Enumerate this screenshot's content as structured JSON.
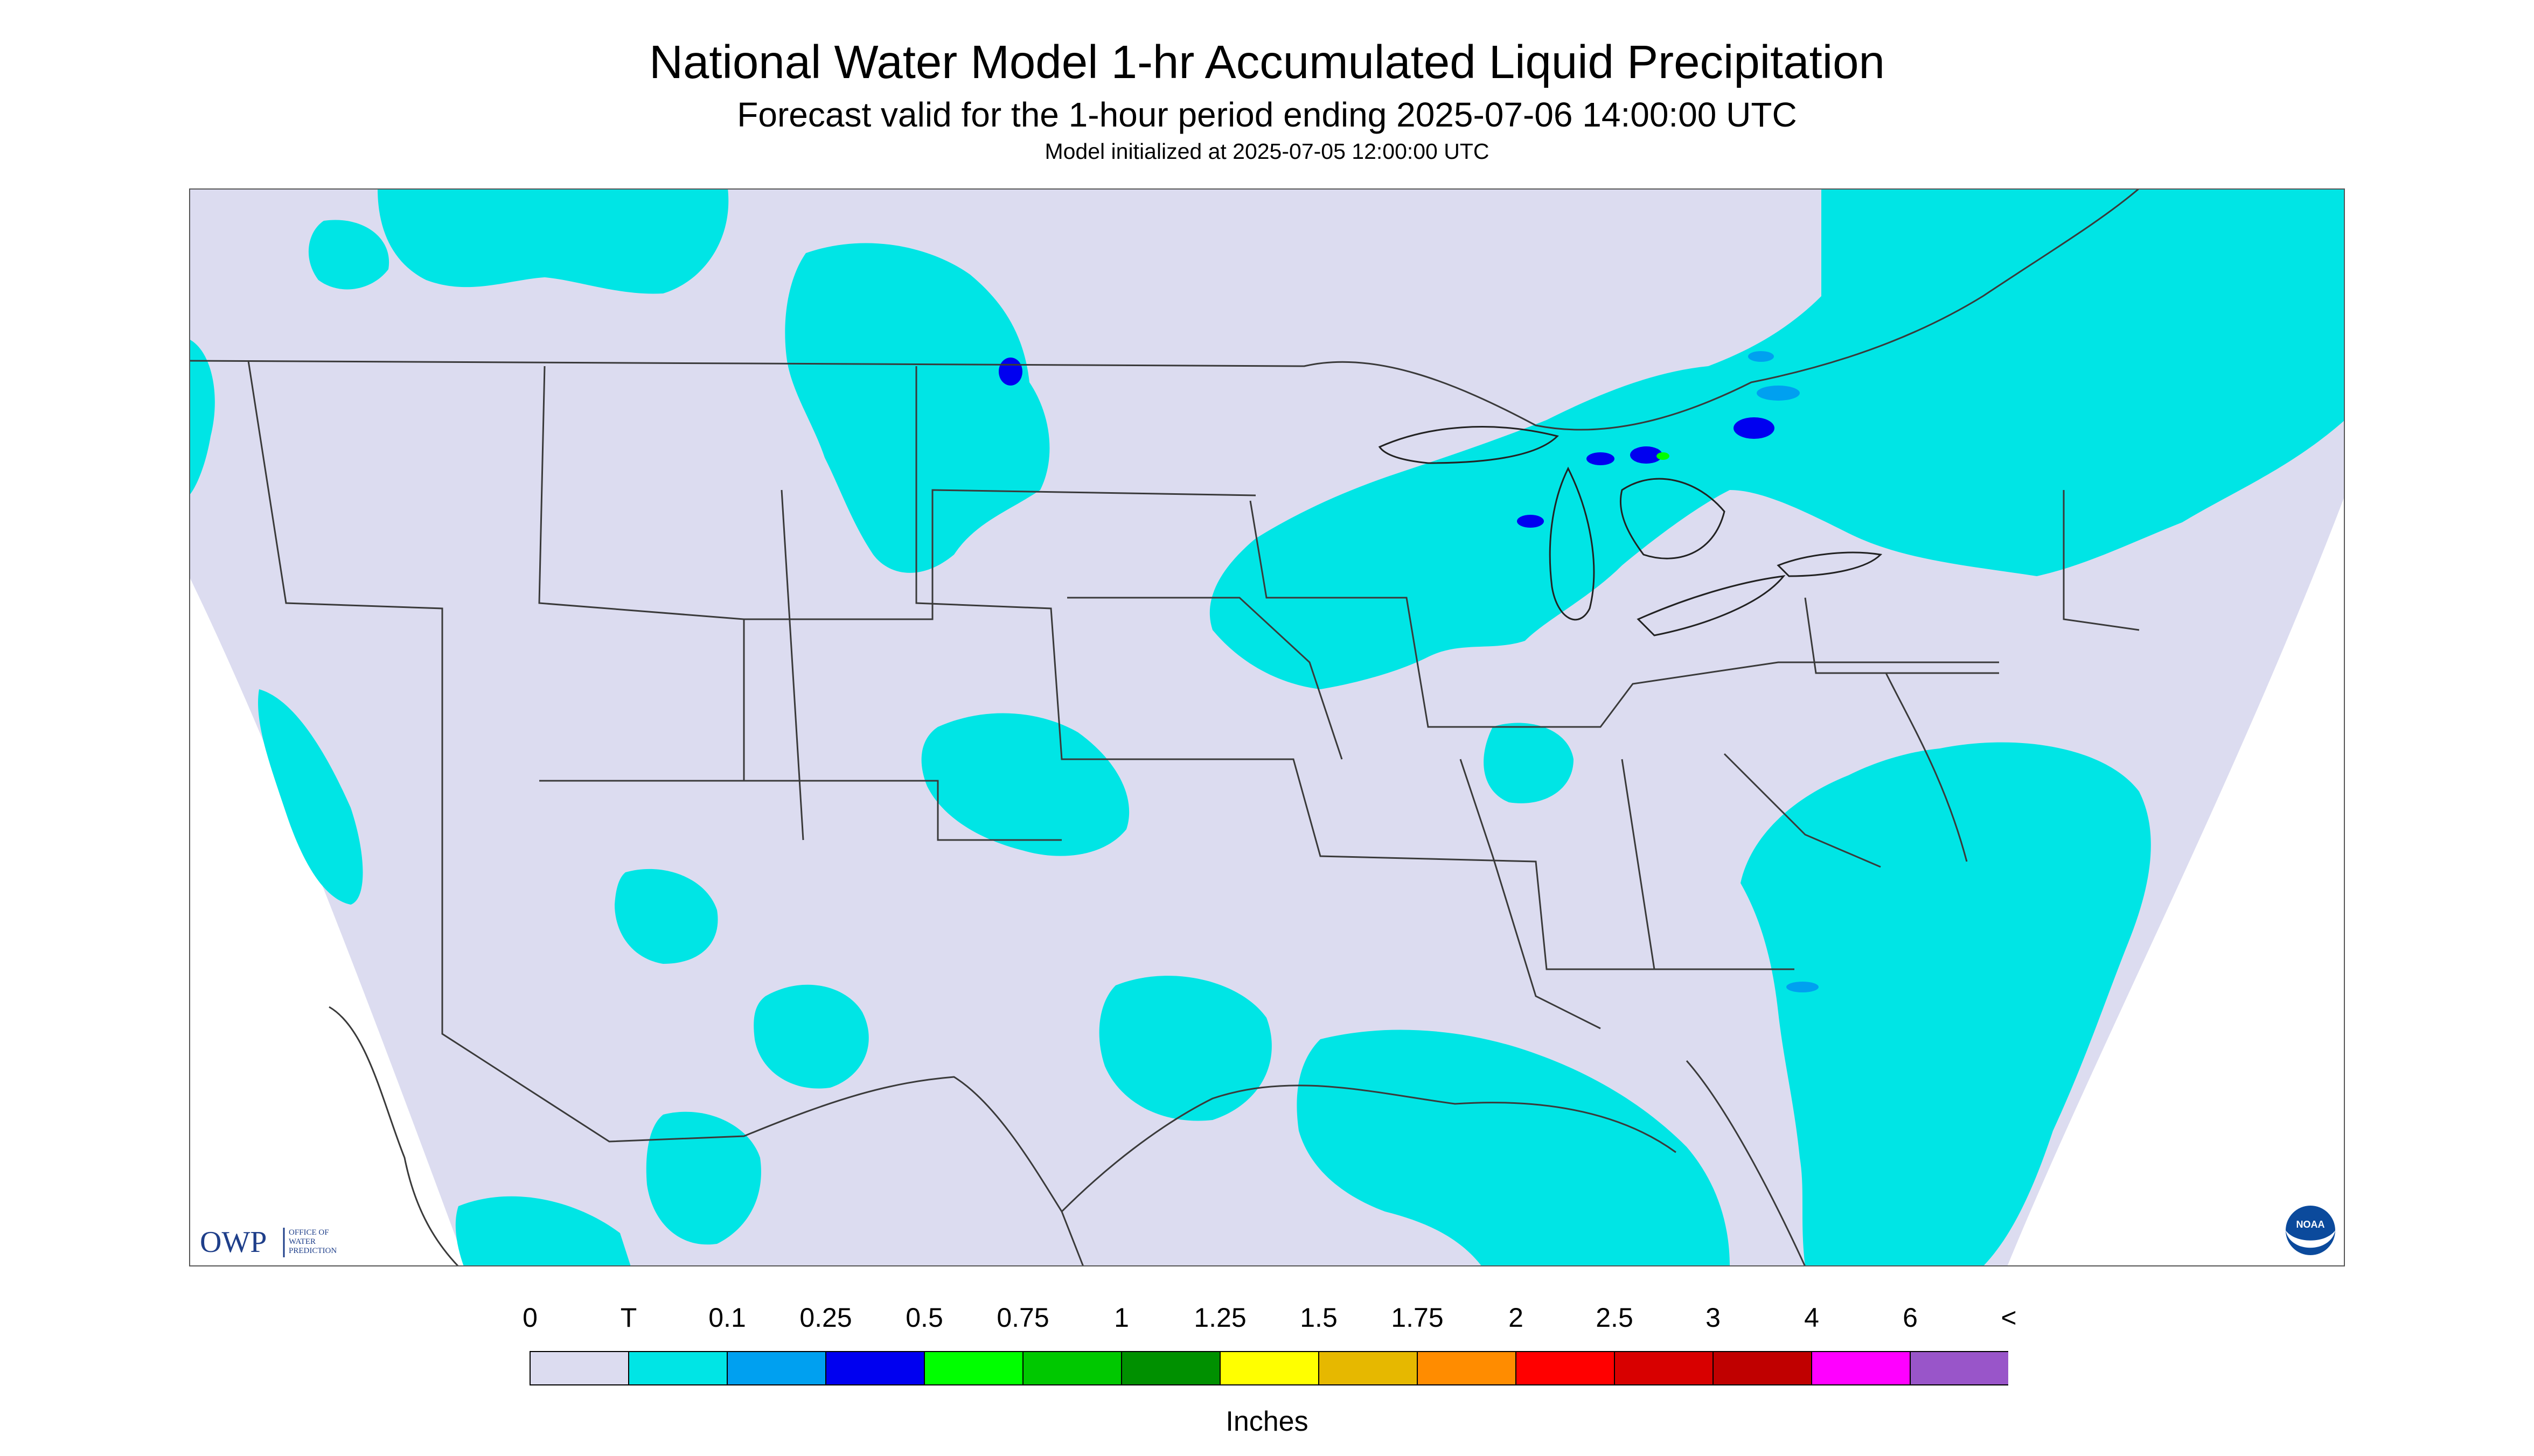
{
  "title": "National Water Model 1-hr Accumulated Liquid Precipitation",
  "subtitle": "Forecast valid for the 1-hour period ending 2025-07-06 14:00:00 UTC",
  "init_line": "Model initialized at 2025-07-05 12:00:00 UTC",
  "logos": {
    "owp_letters": "OWP",
    "owp_text": [
      "OFFICE OF",
      "WATER",
      "PREDICTION"
    ],
    "noaa_text": "NOAA"
  },
  "legend": {
    "units": "Inches",
    "labels": [
      "0",
      "T",
      "0.1",
      "0.25",
      "0.5",
      "0.75",
      "1",
      "1.25",
      "1.5",
      "1.75",
      "2",
      "2.5",
      "3",
      "4",
      "6",
      "<"
    ],
    "colors": [
      "#dcdcf0",
      "#00e5e5",
      "#00a0f0",
      "#0000f0",
      "#00ff00",
      "#00c800",
      "#009000",
      "#ffff00",
      "#e6b800",
      "#ff8c00",
      "#ff0000",
      "#d80000",
      "#c00000",
      "#ff00ff",
      "#9955c9"
    ]
  },
  "map": {
    "background": "#ffffff",
    "domain_fill": "#dcdcf0",
    "precip_trace_color": "#00e5e5",
    "precip_heavier_color": "#0000f0"
  }
}
